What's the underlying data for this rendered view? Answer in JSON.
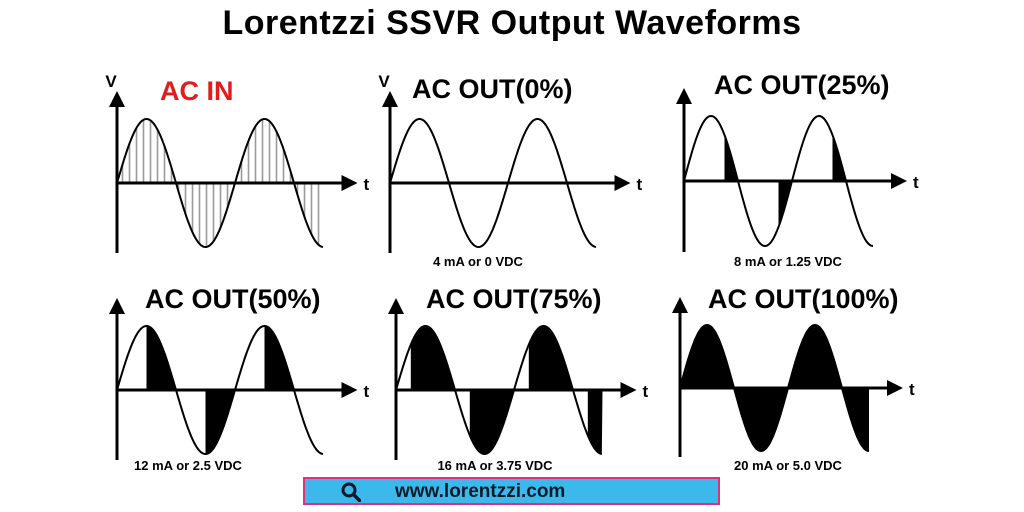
{
  "title": "Lorentzzi SSVR Output Waveforms",
  "axis_labels": {
    "voltage": "V",
    "time": "t"
  },
  "panels": [
    {
      "id": "ac-in",
      "title": "AC IN",
      "title_color": "#e31b1b",
      "caption": "",
      "fill_style": "hatch",
      "conduction_percent": 100,
      "show_v_label": true
    },
    {
      "id": "out-0",
      "title": "AC OUT(0%)",
      "title_color": "#000000",
      "caption": "4 mA or 0 VDC",
      "fill_style": "solid",
      "conduction_percent": 0,
      "show_v_label": true
    },
    {
      "id": "out-25",
      "title": "AC OUT(25%)",
      "title_color": "#000000",
      "caption": "8 mA or 1.25 VDC",
      "fill_style": "solid",
      "conduction_percent": 25,
      "show_v_label": false
    },
    {
      "id": "out-50",
      "title": "AC OUT(50%)",
      "title_color": "#000000",
      "caption": "12 mA or 2.5 VDC",
      "fill_style": "solid",
      "conduction_percent": 50,
      "show_v_label": false
    },
    {
      "id": "out-75",
      "title": "AC OUT(75%)",
      "title_color": "#000000",
      "caption": "16 mA or 3.75 VDC",
      "fill_style": "solid",
      "conduction_percent": 75,
      "show_v_label": false
    },
    {
      "id": "out-100",
      "title": "AC OUT(100%)",
      "title_color": "#000000",
      "caption": "20 mA or 5.0 VDC",
      "fill_style": "solid",
      "conduction_percent": 100,
      "show_v_label": false
    }
  ],
  "url_bar": {
    "icon": "search-icon",
    "text": "www.lorentzzi.com",
    "background": "#3cb9ea",
    "border": "#e0307a"
  }
}
